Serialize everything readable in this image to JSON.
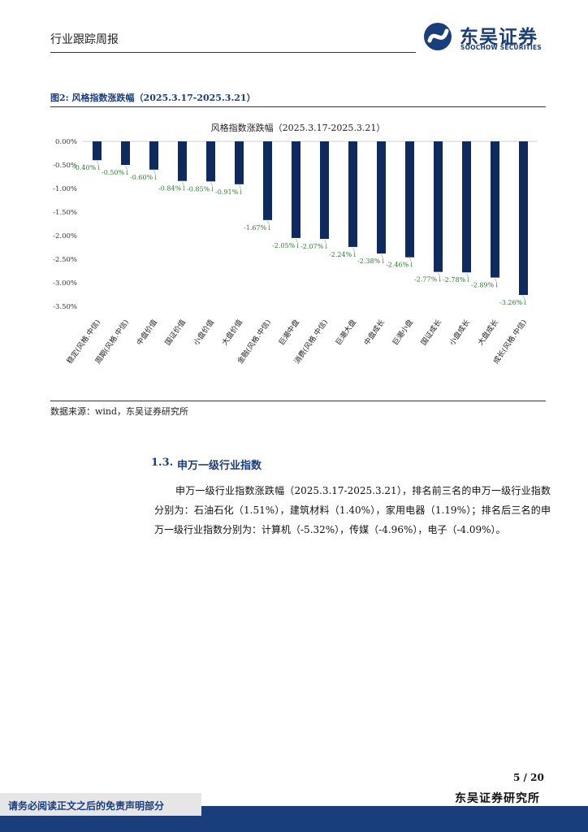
{
  "header": {
    "report_type": "行业跟踪周报",
    "logo_cn": "东吴证券",
    "logo_en": "SOOCHOW SECURITIES"
  },
  "figure": {
    "caption": "图2:  风格指数涨跌幅（2025.3.17-2025.3.21）",
    "source": "数据来源：wind，东吴证券研究所"
  },
  "chart_data": {
    "type": "bar",
    "title": "风格指数涨跌幅（2025.3.17-2025.3.21）",
    "categories": [
      "稳定(风格.中信)",
      "周期(风格.中信)",
      "中盘价值",
      "国证价值",
      "小盘价值",
      "大盘价值",
      "金融(风格.中信)",
      "巨潮中盘",
      "消费(风格.中信)",
      "巨潮大盘",
      "中盘成长",
      "巨潮小盘",
      "国证成长",
      "小盘成长",
      "大盘成长",
      "成长(风格.中信)"
    ],
    "values": [
      -0.4,
      -0.5,
      -0.6,
      -0.84,
      -0.85,
      -0.91,
      -1.67,
      -2.05,
      -2.07,
      -2.24,
      -2.38,
      -2.46,
      -2.77,
      -2.78,
      -2.89,
      -3.26
    ],
    "data_labels": [
      "-0.40%↓",
      "-0.50%↓",
      "-0.60%↓",
      "-0.84%↓",
      "-0.85%↓",
      "-0.91%↓",
      "-1.67%↓",
      "-2.05%↓",
      "-2.07%↓",
      "-2.24%↓",
      "-2.38%↓",
      "-2.46%↓",
      "-2.77%↓",
      "-2.78%↓",
      "-2.89%↓",
      "-3.26%↓"
    ],
    "y_ticks": [
      "0.00%",
      "-0.50%",
      "-1.00%",
      "-1.50%",
      "-2.00%",
      "-2.50%",
      "-3.00%",
      "-3.50%"
    ],
    "ylim": [
      -3.5,
      0
    ],
    "grid": false,
    "legend": "none",
    "bar_color": "#0e2a5e",
    "label_color": "#2e7d32"
  },
  "section": {
    "number": "1.3.",
    "title": "申万一级行业指数",
    "paragraph": "申万一级行业指数涨跌幅（2025.3.17-2025.3.21），排名前三名的申万一级行业指数分别为：石油石化（1.51%），建筑材料（1.40%），家用电器（1.19%）；排名后三名的申万一级行业指数分别为：计算机（-5.32%），传媒（-4.96%），电子（-4.09%）。"
  },
  "footer": {
    "page": "5  /  20",
    "org": "东吴证券研究所",
    "disclaimer": "请务必阅读正文之后的免责声明部分"
  }
}
